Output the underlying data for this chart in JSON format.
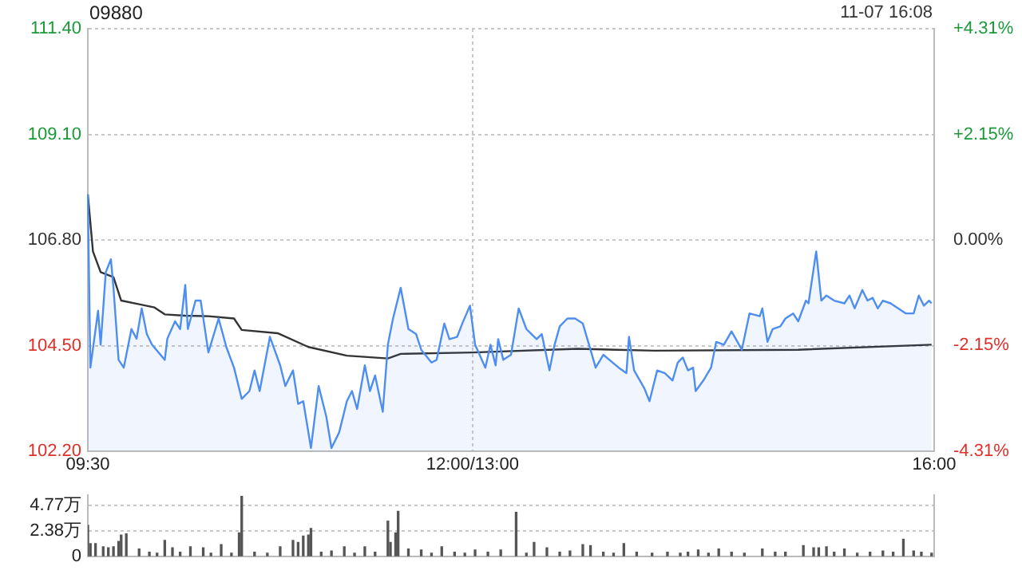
{
  "chart_data": [
    {
      "type": "line",
      "title": "09880",
      "annotations": [
        "11-07 16:08"
      ],
      "categories": [
        "09:30",
        null,
        null,
        null,
        null,
        null,
        null,
        null,
        null,
        null,
        null,
        null,
        null,
        null,
        null,
        null,
        null,
        null,
        null,
        null,
        null,
        null,
        null,
        null,
        null,
        null,
        null,
        null,
        null,
        null,
        null,
        null,
        null,
        null,
        null,
        null,
        null,
        null,
        null,
        null,
        null,
        null,
        null,
        null,
        null,
        null,
        null,
        null,
        null,
        null,
        null,
        null,
        null,
        null,
        null,
        null,
        null,
        null,
        null,
        null,
        null,
        null,
        null,
        null,
        null,
        null,
        null,
        null,
        null,
        null,
        null,
        null,
        null,
        null,
        null,
        null,
        null,
        null,
        null,
        null,
        null,
        null,
        null,
        null,
        null,
        null,
        null,
        null,
        null,
        null,
        null,
        null,
        null,
        null,
        null,
        null,
        null,
        null,
        null,
        null,
        null,
        null,
        null,
        null,
        null,
        null,
        null,
        null,
        null,
        null,
        null,
        null,
        null,
        null,
        null,
        null,
        null,
        null,
        null,
        null,
        null,
        null,
        null,
        null,
        null,
        null,
        null,
        null,
        null,
        null,
        null,
        null,
        null,
        null,
        null,
        null,
        null,
        null,
        null,
        null,
        null,
        null,
        null,
        null,
        null,
        null,
        null,
        null,
        null,
        null,
        "12:00/13:00",
        null,
        null,
        null,
        null,
        null,
        null,
        null,
        null,
        null,
        null,
        null,
        null,
        null,
        null,
        null,
        null,
        null,
        null,
        null,
        null,
        null,
        null,
        null,
        null,
        null,
        null,
        null,
        null,
        null,
        null,
        null,
        null,
        null,
        null,
        null,
        null,
        null,
        null,
        null,
        null,
        null,
        null,
        null,
        null,
        null,
        null,
        null,
        null,
        null,
        null,
        null,
        null,
        null,
        null,
        null,
        null,
        null,
        null,
        null,
        null,
        null,
        null,
        null,
        null,
        null,
        null,
        null,
        null,
        null,
        null,
        null,
        null,
        null,
        null,
        null,
        null,
        null,
        null,
        null,
        null,
        null,
        null,
        null,
        null,
        null,
        null,
        null,
        null,
        null,
        null,
        null,
        null,
        null,
        null,
        null,
        null,
        null,
        null,
        null,
        null,
        null,
        null,
        null,
        null,
        null,
        null,
        null,
        null,
        null,
        null,
        null,
        null,
        null,
        null,
        null,
        null,
        null,
        null,
        null,
        null,
        null,
        null,
        null,
        null,
        null,
        null,
        null,
        null,
        null,
        null,
        null,
        null,
        null,
        null,
        null,
        null,
        null,
        null,
        null,
        null,
        null,
        null,
        null,
        null,
        null,
        null,
        null,
        null,
        null,
        null,
        null,
        null,
        null,
        null,
        null,
        null,
        null,
        null,
        null,
        null,
        null,
        null,
        null,
        null,
        null,
        null,
        null,
        null,
        null,
        null,
        null,
        null,
        null,
        null,
        null,
        null,
        null,
        null,
        null,
        "16:00"
      ],
      "ylim": [
        102.2,
        111.4
      ],
      "yticks": [
        {
          "value": 102.2,
          "label": "102.20"
        },
        {
          "value": 104.5,
          "label": "104.50"
        },
        {
          "value": 106.8,
          "label": "106.80"
        },
        {
          "value": 109.1,
          "label": "109.10"
        },
        {
          "value": 111.4,
          "label": "111.40"
        }
      ],
      "y2lim": [
        -4.31,
        4.31
      ],
      "y2ticks": [
        {
          "value": -4.31,
          "label": "-4.31%"
        },
        {
          "value": -2.15,
          "label": "-2.15%"
        },
        {
          "value": 0,
          "label": "0.00%"
        },
        {
          "value": 2.15,
          "label": "+2.15%"
        },
        {
          "value": 4.31,
          "label": "+4.31%"
        }
      ],
      "grid": true,
      "marker": "none",
      "series": [
        {
          "type": "area",
          "color": "#4d8ef0",
          "values": [
            107.79,
            104.02,
            null,
            null,
            105.26,
            104.52,
            null,
            106.1,
            null,
            106.38,
            105.76,
            null,
            104.19,
            null,
            104.02,
            null,
            null,
            104.86,
            null,
            104.65,
            null,
            105.31,
            null,
            104.75,
            null,
            104.52,
            null,
            null,
            null,
            null,
            104.19,
            104.65,
            null,
            null,
            105.03,
            null,
            104.86,
            null,
            105.82,
            104.86,
            null,
            null,
            105.48,
            null,
            105.48,
            null,
            null,
            104.35,
            null,
            null,
            null,
            105.09,
            null,
            null,
            104.47,
            null,
            null,
            104.02,
            null,
            null,
            103.34,
            null,
            null,
            103.51,
            null,
            103.96,
            null,
            103.51,
            null,
            null,
            null,
            104.69,
            null,
            null,
            null,
            104.07,
            null,
            103.62,
            null,
            null,
            103.96,
            null,
            103.23,
            null,
            103.29,
            null,
            null,
            102.27,
            null,
            null,
            103.62,
            null,
            null,
            102.95,
            null,
            102.27,
            null,
            null,
            102.61,
            null,
            null,
            103.29,
            null,
            103.51,
            null,
            103.12,
            null,
            null,
            104.07,
            null,
            103.51,
            null,
            103.85,
            null,
            null,
            103.06,
            null,
            104.52,
            null,
            105.09,
            null,
            null,
            105.76,
            null,
            null,
            104.86,
            null,
            null,
            104.75,
            null,
            104.41,
            null,
            null,
            null,
            104.13,
            null,
            104.19,
            null,
            null,
            104.98,
            null,
            104.64,
            null,
            null,
            104.69,
            null,
            104.98,
            null,
            null,
            105.37,
            null,
            104.52,
            null,
            null,
            null,
            104.02,
            null,
            104.52,
            null,
            104.07,
            104.64,
            null,
            104.19,
            null,
            null,
            104.3,
            null,
            null,
            105.31,
            null,
            null,
            104.86,
            null,
            104.75,
            null,
            104.64,
            null,
            104.75,
            null,
            null,
            103.96,
            null,
            104.52,
            null,
            104.92,
            null,
            null,
            105.09,
            null,
            null,
            105.09,
            null,
            null,
            104.98,
            null,
            null,
            104.41,
            null,
            104.02,
            null,
            null,
            104.3,
            null,
            null,
            null,
            null,
            null,
            104.02,
            null,
            null,
            103.9,
            104.69,
            null,
            103.96,
            null,
            null,
            null,
            103.57,
            null,
            103.29,
            null,
            null,
            103.96,
            null,
            null,
            103.9,
            null,
            null,
            103.74,
            null,
            104.13,
            null,
            104.24,
            null,
            103.96,
            null,
            104.02,
            103.51,
            null,
            null,
            103.74,
            null,
            null,
            104.02,
            null,
            104.58,
            null,
            null,
            104.52,
            null,
            null,
            104.81,
            null,
            null,
            null,
            104.41,
            null,
            null,
            105.2,
            null,
            null,
            null,
            105.14,
            105.31,
            null,
            104.58,
            null,
            104.86,
            null,
            null,
            104.92,
            null,
            105.09,
            null,
            null,
            105.2,
            null,
            105.03,
            null,
            null,
            105.48,
            105.42,
            null,
            null,
            106.55,
            null,
            105.48,
            null,
            105.59,
            null,
            null,
            105.48,
            null,
            null,
            null,
            105.42,
            null,
            105.59,
            null,
            105.31,
            null,
            null,
            105.71,
            null,
            105.48,
            null,
            105.54,
            null,
            105.31,
            null,
            105.48,
            null,
            null,
            105.42,
            null,
            null,
            null,
            null,
            null,
            105.2,
            null,
            null,
            105.2,
            null,
            105.59,
            null,
            105.37,
            null,
            105.48,
            105.42,
            null
          ]
        },
        {
          "color": "#333333",
          "values": [
            107.79,
            null,
            106.55,
            null,
            null,
            106.1,
            null,
            null,
            null,
            null,
            105.99,
            null,
            null,
            105.48,
            null,
            null,
            null,
            null,
            null,
            null,
            105.4,
            null,
            null,
            null,
            null,
            null,
            105.33,
            null,
            null,
            null,
            105.18,
            null,
            null,
            null,
            null,
            null,
            null,
            null,
            105.15,
            null,
            null,
            null,
            null,
            null,
            null,
            null,
            null,
            105.14,
            null,
            null,
            null,
            null,
            null,
            null,
            null,
            null,
            null,
            105.09,
            null,
            null,
            104.84,
            null,
            null,
            null,
            null,
            null,
            null,
            null,
            null,
            null,
            null,
            null,
            null,
            null,
            104.77,
            null,
            null,
            null,
            null,
            null,
            null,
            null,
            null,
            null,
            null,
            null,
            104.47,
            null,
            null,
            null,
            null,
            null,
            null,
            null,
            null,
            null,
            null,
            null,
            null,
            null,
            null,
            104.28,
            null,
            null,
            null,
            null,
            null,
            null,
            null,
            null,
            null,
            null,
            null,
            null,
            null,
            null,
            null,
            104.22,
            null,
            null,
            null,
            null,
            104.32,
            null,
            null,
            null,
            null,
            null,
            null,
            null,
            null,
            null,
            null,
            null,
            null,
            null,
            null,
            null,
            null,
            null,
            null,
            null,
            null,
            null,
            null,
            null,
            null,
            null,
            null,
            null,
            104.35,
            null,
            null,
            null,
            null,
            null,
            null,
            null,
            null,
            null,
            null,
            null,
            null,
            null,
            null,
            null,
            null,
            null,
            null,
            null,
            null,
            null,
            null,
            null,
            null,
            null,
            null,
            null,
            null,
            null,
            null,
            null,
            null,
            null,
            null,
            null,
            null,
            null,
            null,
            null,
            null,
            104.43,
            null,
            null,
            null,
            null,
            null,
            null,
            null,
            null,
            null,
            null,
            null,
            null,
            null,
            null,
            null,
            null,
            null,
            null,
            null,
            null,
            null,
            null,
            null,
            null,
            null,
            null,
            null,
            null,
            null,
            104.39,
            null,
            null,
            null,
            null,
            null,
            null,
            null,
            null,
            null,
            null,
            null,
            null,
            null,
            null,
            null,
            null,
            null,
            null,
            null,
            null,
            null,
            null,
            null,
            null,
            null,
            null,
            null,
            null,
            null,
            null,
            null,
            null,
            null,
            null,
            null,
            null,
            null,
            null,
            null,
            null,
            null,
            null,
            null,
            null,
            null,
            null,
            null,
            null,
            null,
            null,
            null,
            null,
            null,
            null,
            null,
            104.41,
            null,
            null,
            null,
            null,
            null,
            null,
            null,
            null,
            null,
            null,
            null,
            null,
            null,
            null,
            null,
            null,
            null,
            null,
            null,
            null,
            null,
            null,
            null,
            null,
            null,
            null,
            null,
            null,
            null,
            null,
            null,
            null,
            null,
            null,
            null,
            null,
            null,
            null,
            null,
            null,
            null,
            null,
            null,
            null,
            null,
            null,
            null,
            null,
            null,
            null,
            null,
            104.52,
            null
          ]
        }
      ]
    },
    {
      "type": "bar",
      "tick_labels": "y",
      "grid": "y",
      "ylim": [
        0,
        5.7
      ],
      "yticks": [
        0,
        {
          "value": 2.38,
          "label": "2.38万"
        },
        {
          "value": 4.77,
          "label": "4.77万"
        }
      ],
      "series": [
        {
          "color": "#555555",
          "values": [
            2.9,
            1.2,
            null,
            1.2,
            null,
            null,
            0.9,
            null,
            0.8,
            null,
            0.9,
            null,
            1.4,
            2.0,
            null,
            2.1,
            null,
            null,
            null,
            null,
            0.7,
            null,
            null,
            null,
            0.4,
            null,
            null,
            0.3,
            null,
            null,
            1.5,
            null,
            null,
            0.8,
            null,
            null,
            0.4,
            null,
            null,
            null,
            0.9,
            null,
            null,
            null,
            null,
            0.8,
            null,
            null,
            0.3,
            null,
            null,
            null,
            1.1,
            null,
            null,
            null,
            0.3,
            null,
            null,
            2.2,
            5.6,
            null,
            null,
            null,
            null,
            0.4,
            null,
            null,
            null,
            null,
            0.3,
            null,
            null,
            null,
            null,
            0.9,
            null,
            null,
            null,
            null,
            1.5,
            null,
            1.3,
            null,
            1.9,
            null,
            2.0,
            2.6,
            null,
            null,
            null,
            0.4,
            null,
            null,
            null,
            0.5,
            null,
            null,
            null,
            null,
            0.9,
            null,
            null,
            null,
            0.3,
            null,
            null,
            null,
            0.9,
            null,
            null,
            null,
            0.4,
            null,
            null,
            null,
            null,
            3.3,
            1.3,
            null,
            2.2,
            4.2,
            null,
            null,
            null,
            0.7,
            null,
            null,
            null,
            null,
            0.6,
            null,
            null,
            null,
            0.3,
            null,
            null,
            null,
            0.9,
            null,
            null,
            null,
            null,
            0.4,
            null,
            null,
            null,
            0.3,
            null,
            null,
            null,
            0.6,
            null,
            null,
            null,
            null,
            0.4,
            null,
            null,
            null,
            null,
            0.6,
            null,
            null,
            null,
            null,
            null,
            4.1,
            null,
            null,
            null,
            0.3,
            null,
            null,
            1.3,
            null,
            null,
            null,
            null,
            0.8,
            null,
            null,
            null,
            null,
            0.4,
            null,
            null,
            null,
            0.5,
            null,
            null,
            null,
            null,
            1.1,
            null,
            null,
            1.0,
            null,
            null,
            null,
            null,
            0.4,
            null,
            null,
            null,
            0.3,
            null,
            null,
            null,
            1.2,
            null,
            null,
            null,
            null,
            0.4,
            null,
            null,
            null,
            null,
            null,
            0.3,
            null,
            null,
            null,
            null,
            null,
            0.4,
            null,
            null,
            null,
            null,
            0.3,
            null,
            null,
            0.4,
            null,
            null,
            null,
            0.6,
            null,
            null,
            null,
            0.3,
            null,
            null,
            null,
            0.7,
            null,
            null,
            null,
            null,
            0.4,
            null,
            null,
            null,
            null,
            0.3,
            null,
            null,
            null,
            null,
            null,
            null,
            0.7,
            null,
            null,
            null,
            null,
            0.4,
            null,
            null,
            null,
            0.4,
            null,
            null,
            null,
            null,
            null,
            null,
            1.0,
            null,
            null,
            null,
            0.8,
            null,
            0.8,
            null,
            null,
            0.9,
            null,
            null,
            0.4,
            null,
            null,
            null,
            0.7,
            null,
            null,
            null,
            null,
            0.3,
            null,
            null,
            null,
            null,
            0.4,
            null,
            null,
            null,
            null,
            0.5,
            null,
            null,
            null,
            0.4,
            null,
            null,
            null,
            1.6,
            null,
            null,
            null,
            0.5,
            null,
            null,
            0.4,
            null,
            null,
            null,
            0.3,
            null
          ]
        }
      ]
    }
  ]
}
